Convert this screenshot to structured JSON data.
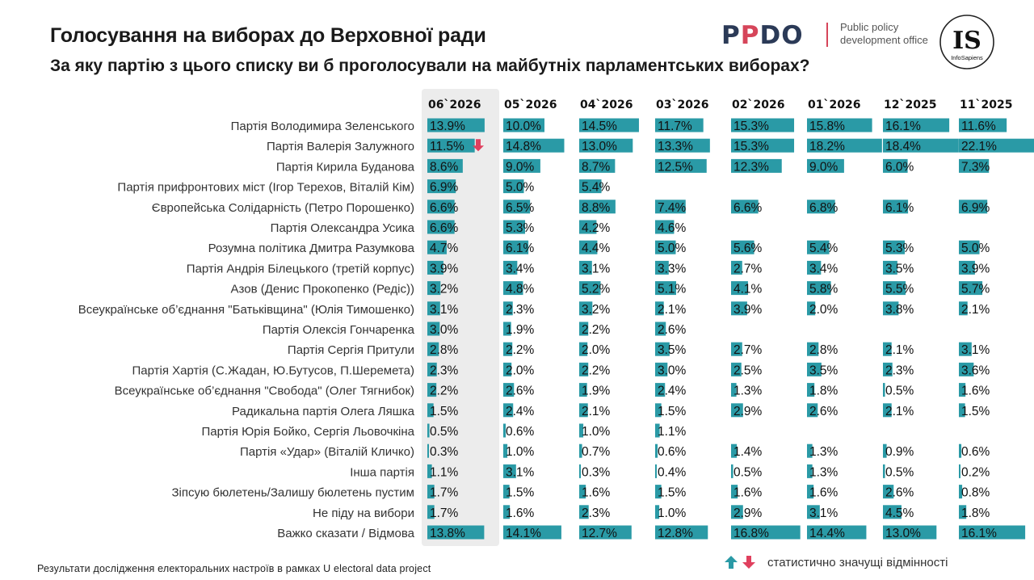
{
  "header": {
    "title": "Голосування на виборах до Верховної ради",
    "subtitle": "За яку партію з цього списку ви б проголосували на майбутніх парламентських виборах?",
    "ppdo_logo_letters": [
      "P",
      "P",
      "D",
      "O"
    ],
    "ppdo_tagline_1": "Public policy",
    "ppdo_tagline_2": "development office",
    "is_logo_big": "IS",
    "is_logo_small": "InfoSapiens"
  },
  "footer": {
    "note": "Результати дослідження електоральних настроїв в рамках U electoral data project",
    "legend_label": "статистично значущі відмінності",
    "up_color": "#2a9aa6",
    "down_color": "#e0405e"
  },
  "chart_data": {
    "type": "table",
    "bar_color": "#2a9aa6",
    "highlight_color": "#ececec",
    "columns": [
      "06`2026",
      "05`2026",
      "04`2026",
      "03`2026",
      "02`2026",
      "01`2026",
      "12`2025",
      "11`2025"
    ],
    "rows": [
      {
        "label": "Партія Володимира Зеленського",
        "values": [
          13.9,
          10.0,
          14.5,
          11.7,
          15.3,
          15.8,
          16.1,
          11.6
        ],
        "sig": "up"
      },
      {
        "label": "Партія Валерія Залужного",
        "values": [
          11.5,
          14.8,
          13.0,
          13.3,
          15.3,
          18.2,
          18.4,
          22.1
        ],
        "sig": "down"
      },
      {
        "label": "Партія Кирила Буданова",
        "values": [
          8.6,
          9.0,
          8.7,
          12.5,
          12.3,
          9.0,
          6.0,
          7.3
        ]
      },
      {
        "label": "Партія прифронтових міст (Ігор Терехов, Віталій Кім)",
        "values": [
          6.9,
          5.0,
          5.4,
          null,
          null,
          null,
          null,
          null
        ]
      },
      {
        "label": "Європейська Солідарність (Петро Порошенко)",
        "values": [
          6.6,
          6.5,
          8.8,
          7.4,
          6.6,
          6.8,
          6.1,
          6.9
        ]
      },
      {
        "label": "Партія Олександра Усика",
        "values": [
          6.6,
          5.3,
          4.2,
          4.6,
          null,
          null,
          null,
          null
        ]
      },
      {
        "label": "Розумна політика Дмитра Разумкова",
        "values": [
          4.7,
          6.1,
          4.4,
          5.0,
          5.6,
          5.4,
          5.3,
          5.0
        ]
      },
      {
        "label": "Партія Андрія Білецького (третій корпус)",
        "values": [
          3.9,
          3.4,
          3.1,
          3.3,
          2.7,
          3.4,
          3.5,
          3.9
        ]
      },
      {
        "label": "Азов (Денис Прокопенко (Редіс))",
        "values": [
          3.2,
          4.8,
          5.2,
          5.1,
          4.1,
          5.8,
          5.5,
          5.7
        ]
      },
      {
        "label": "Всеукраїнське об’єднання \"Батьківщина\" (Юлія Тимошенко)",
        "values": [
          3.1,
          2.3,
          3.2,
          2.1,
          3.9,
          2.0,
          3.8,
          2.1
        ]
      },
      {
        "label": "Партія Олексія Гончаренка",
        "values": [
          3.0,
          1.9,
          2.2,
          2.6,
          null,
          null,
          null,
          null
        ]
      },
      {
        "label": "Партія Сергія Притули",
        "values": [
          2.8,
          2.2,
          2.0,
          3.5,
          2.7,
          2.8,
          2.1,
          3.1
        ]
      },
      {
        "label": "Партія Хартія (С.Жадан, Ю.Бутусов, П.Шеремета)",
        "values": [
          2.3,
          2.0,
          2.2,
          3.0,
          2.5,
          3.5,
          2.3,
          3.6
        ]
      },
      {
        "label": "Всеукраїнське об’єднання \"Свобода\" (Олег Тягнибок)",
        "values": [
          2.2,
          2.6,
          1.9,
          2.4,
          1.3,
          1.8,
          0.5,
          1.6
        ]
      },
      {
        "label": "Радикальна партія Олега Ляшка",
        "values": [
          1.5,
          2.4,
          2.1,
          1.5,
          2.9,
          2.6,
          2.1,
          1.5
        ]
      },
      {
        "label": "Партія Юрія Бойко, Сергія Льовочкіна",
        "values": [
          0.5,
          0.6,
          1.0,
          1.1,
          null,
          null,
          null,
          null
        ]
      },
      {
        "label": "Партія «Удар» (Віталій Кличко)",
        "values": [
          0.3,
          1.0,
          0.7,
          0.6,
          1.4,
          1.3,
          0.9,
          0.6
        ]
      },
      {
        "label": "Інша партія",
        "values": [
          1.1,
          3.1,
          0.3,
          0.4,
          0.5,
          1.3,
          0.5,
          0.2
        ]
      },
      {
        "label": "Зіпсую бюлетень/Залишу бюлетень пустим",
        "values": [
          1.7,
          1.5,
          1.6,
          1.5,
          1.6,
          1.6,
          2.6,
          0.8
        ]
      },
      {
        "label": "Не піду на вибори",
        "values": [
          1.7,
          1.6,
          2.3,
          1.0,
          2.9,
          3.1,
          4.5,
          1.8
        ]
      },
      {
        "label": "Важко сказати / Відмова",
        "values": [
          13.8,
          14.1,
          12.7,
          12.8,
          16.8,
          14.4,
          13.0,
          16.1
        ]
      }
    ]
  }
}
